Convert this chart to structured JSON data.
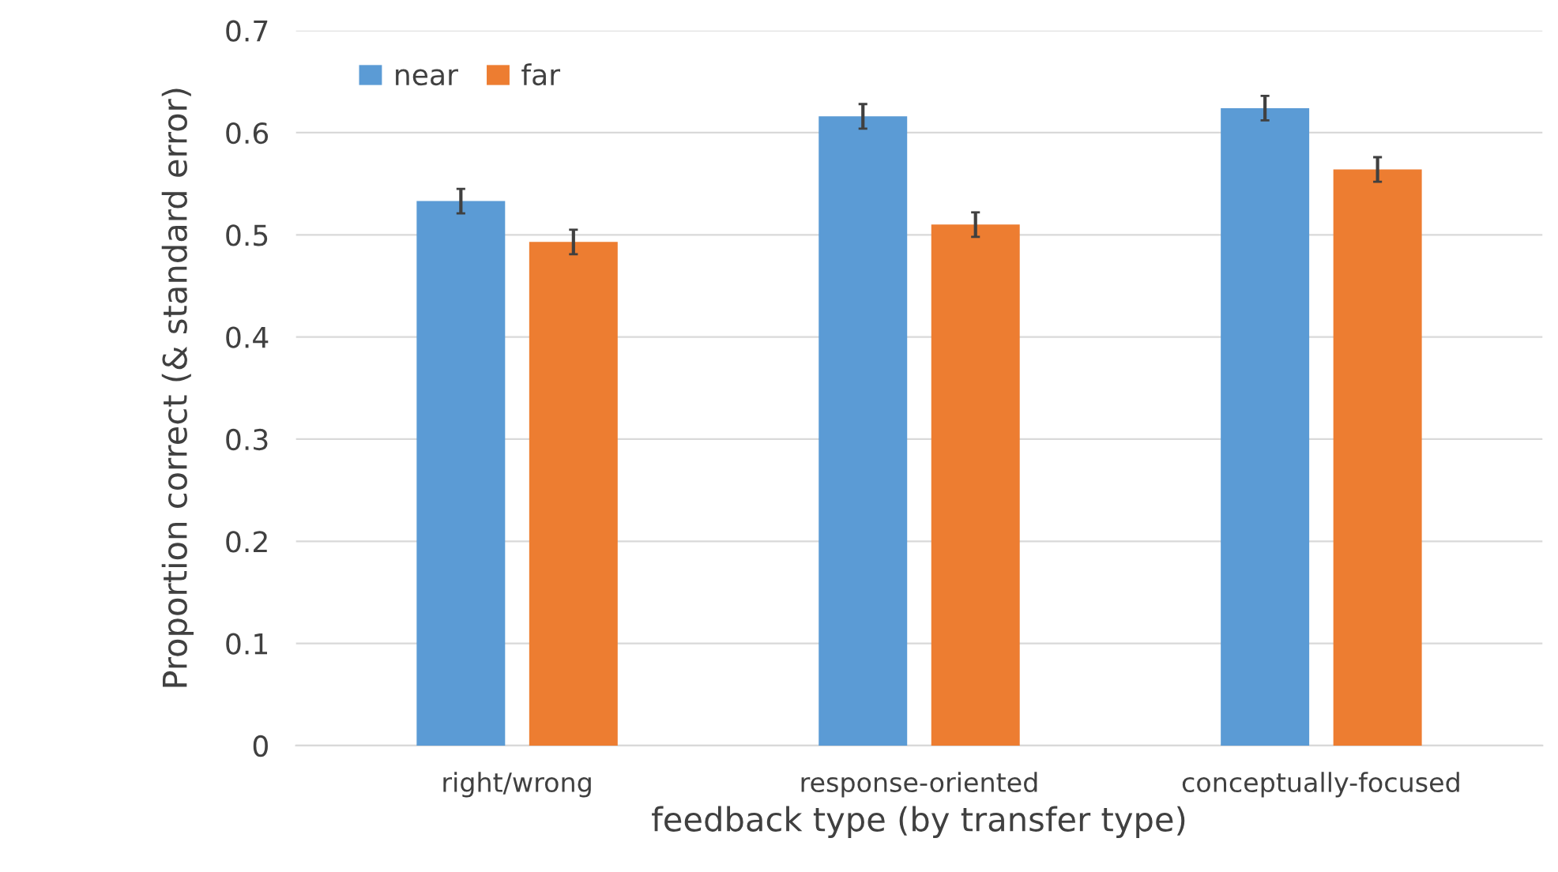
{
  "chart_data": {
    "type": "bar",
    "xlabel": "feedback type (by transfer type)",
    "ylabel": "Proportion correct (& standard error)",
    "categories": [
      "right/wrong",
      "response-oriented",
      "conceptually-focused"
    ],
    "series": [
      {
        "name": "near",
        "color": "#5b9bd5",
        "values": [
          0.533,
          0.616,
          0.624
        ],
        "errors": [
          0.012,
          0.012,
          0.012
        ]
      },
      {
        "name": "far",
        "color": "#ed7d31",
        "values": [
          0.493,
          0.51,
          0.564
        ],
        "errors": [
          0.012,
          0.012,
          0.012
        ]
      }
    ],
    "ylim": [
      0,
      0.7
    ],
    "yticks": [
      {
        "value": 0,
        "label": "0"
      },
      0.1,
      0.2,
      0.3,
      0.4,
      0.5,
      0.6,
      0.7
    ],
    "grid": "y",
    "legend": "top left"
  }
}
